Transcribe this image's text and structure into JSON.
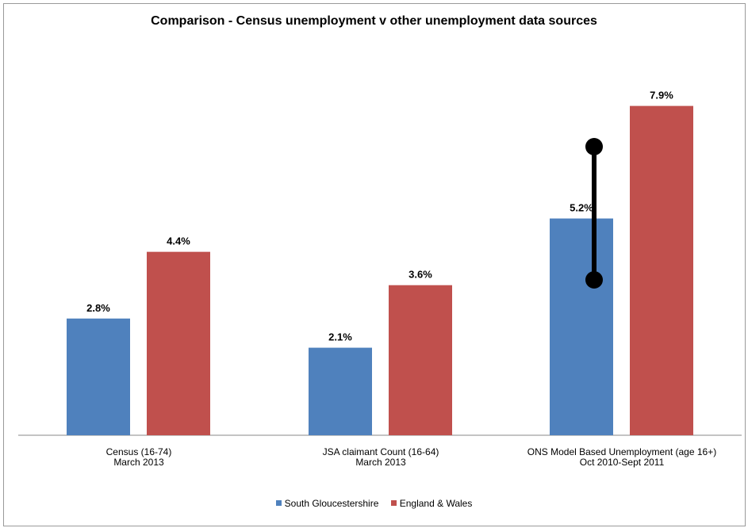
{
  "chart_data": {
    "type": "bar",
    "title": "Comparison - Census unemployment v other unemployment data sources",
    "categories": [
      [
        "Census (16-74)",
        "March 2013"
      ],
      [
        "JSA claimant Count (16-64)",
        "March 2013"
      ],
      [
        "ONS Model Based Unemployment (age 16+)",
        "Oct 2010-Sept 2011"
      ]
    ],
    "series": [
      {
        "name": "South Gloucestershire",
        "color": "#4f81bd",
        "values": [
          2.8,
          2.1,
          5.2
        ],
        "labels": [
          "2.8%",
          "2.1%",
          "5.2%"
        ]
      },
      {
        "name": "England & Wales",
        "color": "#c0504d",
        "values": [
          4.4,
          3.6,
          7.9
        ],
        "labels": [
          "4.4%",
          "3.6%",
          "7.9%"
        ]
      }
    ],
    "ylim": [
      0,
      9.3
    ],
    "grid": false,
    "legend_position": "bottom",
    "annotation": {
      "type": "dumbbell-marker",
      "category_index": 2,
      "color": "#000000"
    }
  }
}
